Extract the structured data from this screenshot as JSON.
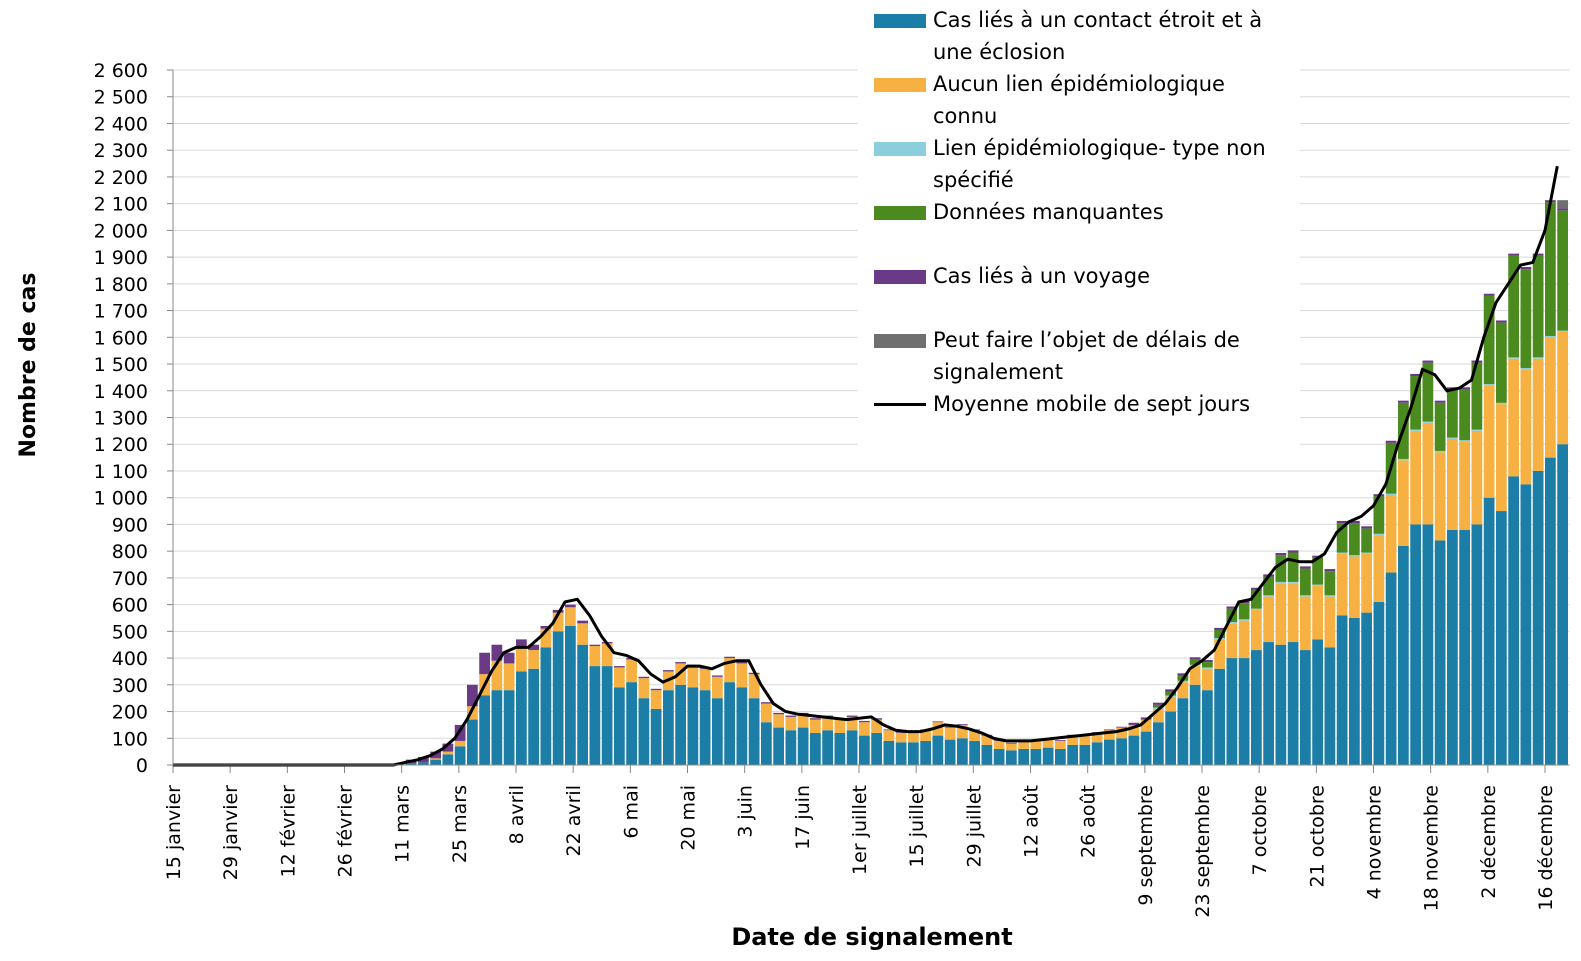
{
  "chart_data": {
    "type": "bar",
    "xlabel": "Date de signalement",
    "ylabel": "Nombre de cas",
    "stacked": true,
    "grid": true,
    "xlim": [
      0,
      342
    ],
    "ylim": [
      0,
      2600
    ],
    "xticks": [
      {
        "value": 0,
        "label": "15 janvier"
      },
      {
        "value": 14,
        "label": "29 janvier"
      },
      {
        "value": 28,
        "label": "12 février"
      },
      {
        "value": 42,
        "label": "26 février"
      },
      {
        "value": 56,
        "label": "11 mars"
      },
      {
        "value": 70,
        "label": "25 mars"
      },
      {
        "value": 84,
        "label": "8 avril"
      },
      {
        "value": 98,
        "label": "22 avril"
      },
      {
        "value": 112,
        "label": "6 mai"
      },
      {
        "value": 126,
        "label": "20 mai"
      },
      {
        "value": 140,
        "label": "3 juin"
      },
      {
        "value": 154,
        "label": "17 juin"
      },
      {
        "value": 168,
        "label": "1er juillet"
      },
      {
        "value": 182,
        "label": "15 juillet"
      },
      {
        "value": 196,
        "label": "29 juillet"
      },
      {
        "value": 210,
        "label": "12 août"
      },
      {
        "value": 224,
        "label": "26 août"
      },
      {
        "value": 238,
        "label": "9 septembre"
      },
      {
        "value": 252,
        "label": "23 septembre"
      },
      {
        "value": 266,
        "label": "7 octobre"
      },
      {
        "value": 280,
        "label": "21 octobre"
      },
      {
        "value": 294,
        "label": "4 novembre"
      },
      {
        "value": 308,
        "label": "18 novembre"
      },
      {
        "value": 322,
        "label": "2 décembre"
      },
      {
        "value": 336,
        "label": "16 décembre"
      }
    ],
    "yticks": [
      0,
      100,
      200,
      300,
      400,
      500,
      600,
      700,
      800,
      900,
      {
        "value": 1000,
        "label": "1 000"
      },
      {
        "value": 1100,
        "label": "1 100"
      },
      {
        "value": 1200,
        "label": "1 200"
      },
      {
        "value": 1300,
        "label": "1 300"
      },
      {
        "value": 1400,
        "label": "1 400"
      },
      {
        "value": 1500,
        "label": "1 500"
      },
      {
        "value": 1600,
        "label": "1 600"
      },
      {
        "value": 1700,
        "label": "1 700"
      },
      {
        "value": 1800,
        "label": "1 800"
      },
      {
        "value": 1900,
        "label": "1 900"
      },
      {
        "value": 2000,
        "label": "2 000"
      },
      {
        "value": 2100,
        "label": "2 100"
      },
      {
        "value": 2200,
        "label": "2 200"
      },
      {
        "value": 2300,
        "label": "2 300"
      },
      {
        "value": 2400,
        "label": "2 400"
      },
      {
        "value": 2500,
        "label": "2 500"
      },
      {
        "value": 2600,
        "label": "2 600"
      }
    ],
    "x": [
      54,
      57,
      60,
      63,
      66,
      69,
      72,
      75,
      78,
      81,
      84,
      87,
      90,
      93,
      96,
      99,
      102,
      105,
      108,
      111,
      114,
      117,
      120,
      123,
      126,
      129,
      132,
      135,
      138,
      141,
      144,
      147,
      150,
      153,
      156,
      159,
      162,
      165,
      168,
      171,
      174,
      177,
      180,
      183,
      186,
      189,
      192,
      195,
      198,
      201,
      204,
      207,
      210,
      213,
      216,
      219,
      222,
      225,
      228,
      231,
      234,
      237,
      240,
      243,
      246,
      249,
      252,
      255,
      258,
      261,
      264,
      267,
      270,
      273,
      276,
      279,
      282,
      285,
      288,
      291,
      294,
      297,
      300,
      303,
      306,
      309,
      312,
      315,
      318,
      321,
      324,
      327,
      330,
      333,
      336,
      339
    ],
    "series": [
      {
        "name": "Cas liés à un contact étroit et à une éclosion",
        "color": "#1c7ea6",
        "values": [
          0,
          5,
          10,
          20,
          40,
          70,
          170,
          260,
          280,
          280,
          350,
          360,
          440,
          500,
          520,
          450,
          370,
          370,
          290,
          310,
          250,
          210,
          280,
          300,
          290,
          280,
          250,
          310,
          290,
          250,
          160,
          140,
          130,
          140,
          120,
          130,
          120,
          130,
          110,
          120,
          90,
          85,
          85,
          90,
          110,
          95,
          100,
          90,
          75,
          60,
          55,
          60,
          60,
          65,
          60,
          75,
          75,
          85,
          95,
          100,
          110,
          125,
          160,
          200,
          250,
          300,
          280,
          360,
          400,
          400,
          430,
          460,
          450,
          460,
          430,
          470,
          440,
          560,
          550,
          570,
          610,
          720,
          820,
          900,
          900,
          840,
          880,
          880,
          900,
          1000,
          950,
          1080,
          1050,
          1100,
          1150,
          1200
        ]
      },
      {
        "name": "Aucun lien épidémiologique connu",
        "color": "#f6b142",
        "values": [
          0,
          0,
          0,
          5,
          10,
          20,
          50,
          80,
          110,
          100,
          90,
          70,
          70,
          70,
          70,
          80,
          75,
          85,
          75,
          85,
          75,
          70,
          70,
          80,
          80,
          80,
          80,
          90,
          90,
          90,
          70,
          50,
          50,
          50,
          50,
          50,
          50,
          50,
          50,
          50,
          40,
          35,
          35,
          40,
          50,
          45,
          50,
          40,
          35,
          30,
          25,
          25,
          30,
          30,
          30,
          35,
          35,
          35,
          35,
          40,
          40,
          45,
          50,
          55,
          60,
          70,
          80,
          110,
          130,
          140,
          150,
          170,
          230,
          220,
          200,
          200,
          190,
          230,
          230,
          220,
          250,
          290,
          320,
          350,
          380,
          330,
          340,
          330,
          350,
          420,
          400,
          440,
          430,
          420,
          450,
          420
        ]
      },
      {
        "name": "Lien épidémiologique- type non spécifié",
        "color": "#8ccfdc",
        "values": [
          0,
          0,
          0,
          0,
          0,
          0,
          0,
          0,
          0,
          0,
          0,
          0,
          0,
          0,
          0,
          0,
          0,
          0,
          0,
          0,
          0,
          0,
          0,
          0,
          0,
          0,
          0,
          0,
          0,
          0,
          0,
          0,
          0,
          0,
          0,
          0,
          0,
          0,
          0,
          0,
          0,
          0,
          0,
          0,
          0,
          0,
          0,
          0,
          0,
          0,
          0,
          0,
          0,
          0,
          0,
          0,
          0,
          0,
          0,
          0,
          0,
          0,
          5,
          5,
          5,
          5,
          5,
          5,
          5,
          5,
          5,
          5,
          5,
          5,
          5,
          5,
          5,
          5,
          5,
          5,
          5,
          5,
          5,
          5,
          5,
          5,
          5,
          5,
          5,
          5,
          5,
          5,
          5,
          5,
          5,
          5
        ]
      },
      {
        "name": "Données manquantes",
        "color": "#4a8a1e",
        "values": [
          0,
          0,
          0,
          0,
          0,
          0,
          0,
          0,
          0,
          0,
          0,
          0,
          0,
          0,
          0,
          0,
          0,
          0,
          0,
          0,
          0,
          0,
          0,
          0,
          0,
          0,
          0,
          0,
          0,
          0,
          0,
          0,
          0,
          0,
          0,
          0,
          0,
          0,
          0,
          0,
          0,
          0,
          0,
          0,
          0,
          0,
          0,
          0,
          0,
          0,
          0,
          0,
          0,
          0,
          0,
          0,
          0,
          0,
          0,
          0,
          0,
          0,
          10,
          15,
          20,
          20,
          20,
          30,
          50,
          60,
          70,
          70,
          100,
          110,
          100,
          100,
          90,
          110,
          120,
          90,
          140,
          190,
          210,
          200,
          220,
          180,
          180,
          190,
          250,
          330,
          300,
          380,
          370,
          380,
          500,
          450
        ]
      },
      {
        "name": "Cas liés à un voyage",
        "color": "#6a3a86",
        "values": [
          0,
          15,
          20,
          25,
          30,
          60,
          80,
          80,
          60,
          40,
          30,
          20,
          10,
          10,
          10,
          10,
          5,
          5,
          5,
          5,
          5,
          5,
          5,
          5,
          5,
          5,
          5,
          5,
          5,
          5,
          5,
          5,
          5,
          5,
          5,
          5,
          5,
          5,
          5,
          5,
          3,
          3,
          3,
          3,
          3,
          3,
          3,
          3,
          3,
          3,
          3,
          3,
          3,
          3,
          3,
          3,
          3,
          3,
          3,
          3,
          8,
          8,
          8,
          8,
          8,
          8,
          8,
          8,
          8,
          8,
          8,
          8,
          8,
          8,
          8,
          8,
          8,
          8,
          8,
          8,
          8,
          8,
          8,
          8,
          8,
          8,
          8,
          8,
          8,
          8,
          8,
          8,
          8,
          8,
          8,
          8
        ]
      },
      {
        "name": "Peut faire l’objet de délais de signalement",
        "color": "#6f6f6f",
        "values": [
          0,
          0,
          0,
          0,
          0,
          0,
          0,
          0,
          0,
          0,
          0,
          0,
          0,
          0,
          0,
          0,
          0,
          0,
          0,
          0,
          0,
          0,
          0,
          0,
          0,
          0,
          0,
          0,
          0,
          0,
          0,
          0,
          0,
          0,
          0,
          0,
          0,
          0,
          0,
          0,
          0,
          0,
          0,
          0,
          0,
          0,
          0,
          0,
          0,
          0,
          0,
          0,
          0,
          0,
          0,
          0,
          0,
          0,
          0,
          0,
          0,
          0,
          0,
          0,
          0,
          0,
          0,
          0,
          0,
          0,
          0,
          0,
          0,
          0,
          0,
          0,
          0,
          0,
          0,
          0,
          0,
          0,
          0,
          0,
          0,
          0,
          0,
          0,
          0,
          0,
          0,
          0,
          0,
          0,
          0,
          30
        ]
      },
      {
        "name": "Moyenne mobile de sept jours",
        "type": "line",
        "color": "#000000",
        "x": [
          0,
          54,
          57,
          60,
          63,
          66,
          69,
          72,
          75,
          78,
          81,
          84,
          87,
          90,
          93,
          96,
          99,
          102,
          105,
          108,
          111,
          114,
          117,
          120,
          123,
          126,
          129,
          132,
          135,
          138,
          141,
          144,
          147,
          150,
          153,
          156,
          159,
          162,
          165,
          168,
          171,
          174,
          177,
          180,
          183,
          186,
          189,
          192,
          195,
          198,
          201,
          204,
          207,
          210,
          213,
          216,
          219,
          222,
          225,
          228,
          231,
          234,
          237,
          240,
          243,
          246,
          249,
          252,
          255,
          258,
          261,
          264,
          267,
          270,
          273,
          276,
          279,
          282,
          285,
          288,
          291,
          294,
          297,
          300,
          303,
          306,
          309,
          312,
          315,
          318,
          321,
          324,
          327,
          330,
          333,
          336,
          339
        ],
        "values": [
          0,
          0,
          10,
          20,
          35,
          60,
          100,
          170,
          260,
          350,
          420,
          440,
          440,
          480,
          530,
          610,
          620,
          560,
          480,
          420,
          410,
          390,
          340,
          310,
          330,
          370,
          370,
          360,
          380,
          390,
          390,
          300,
          230,
          200,
          190,
          185,
          180,
          175,
          170,
          175,
          180,
          150,
          130,
          125,
          125,
          135,
          150,
          145,
          135,
          120,
          100,
          90,
          90,
          90,
          95,
          100,
          105,
          110,
          115,
          120,
          125,
          135,
          150,
          190,
          230,
          290,
          360,
          390,
          430,
          520,
          610,
          620,
          680,
          740,
          770,
          760,
          760,
          790,
          870,
          910,
          930,
          970,
          1050,
          1200,
          1330,
          1480,
          1460,
          1400,
          1410,
          1440,
          1600,
          1730,
          1800,
          1870,
          1880,
          2000,
          2240
        ]
      }
    ]
  }
}
